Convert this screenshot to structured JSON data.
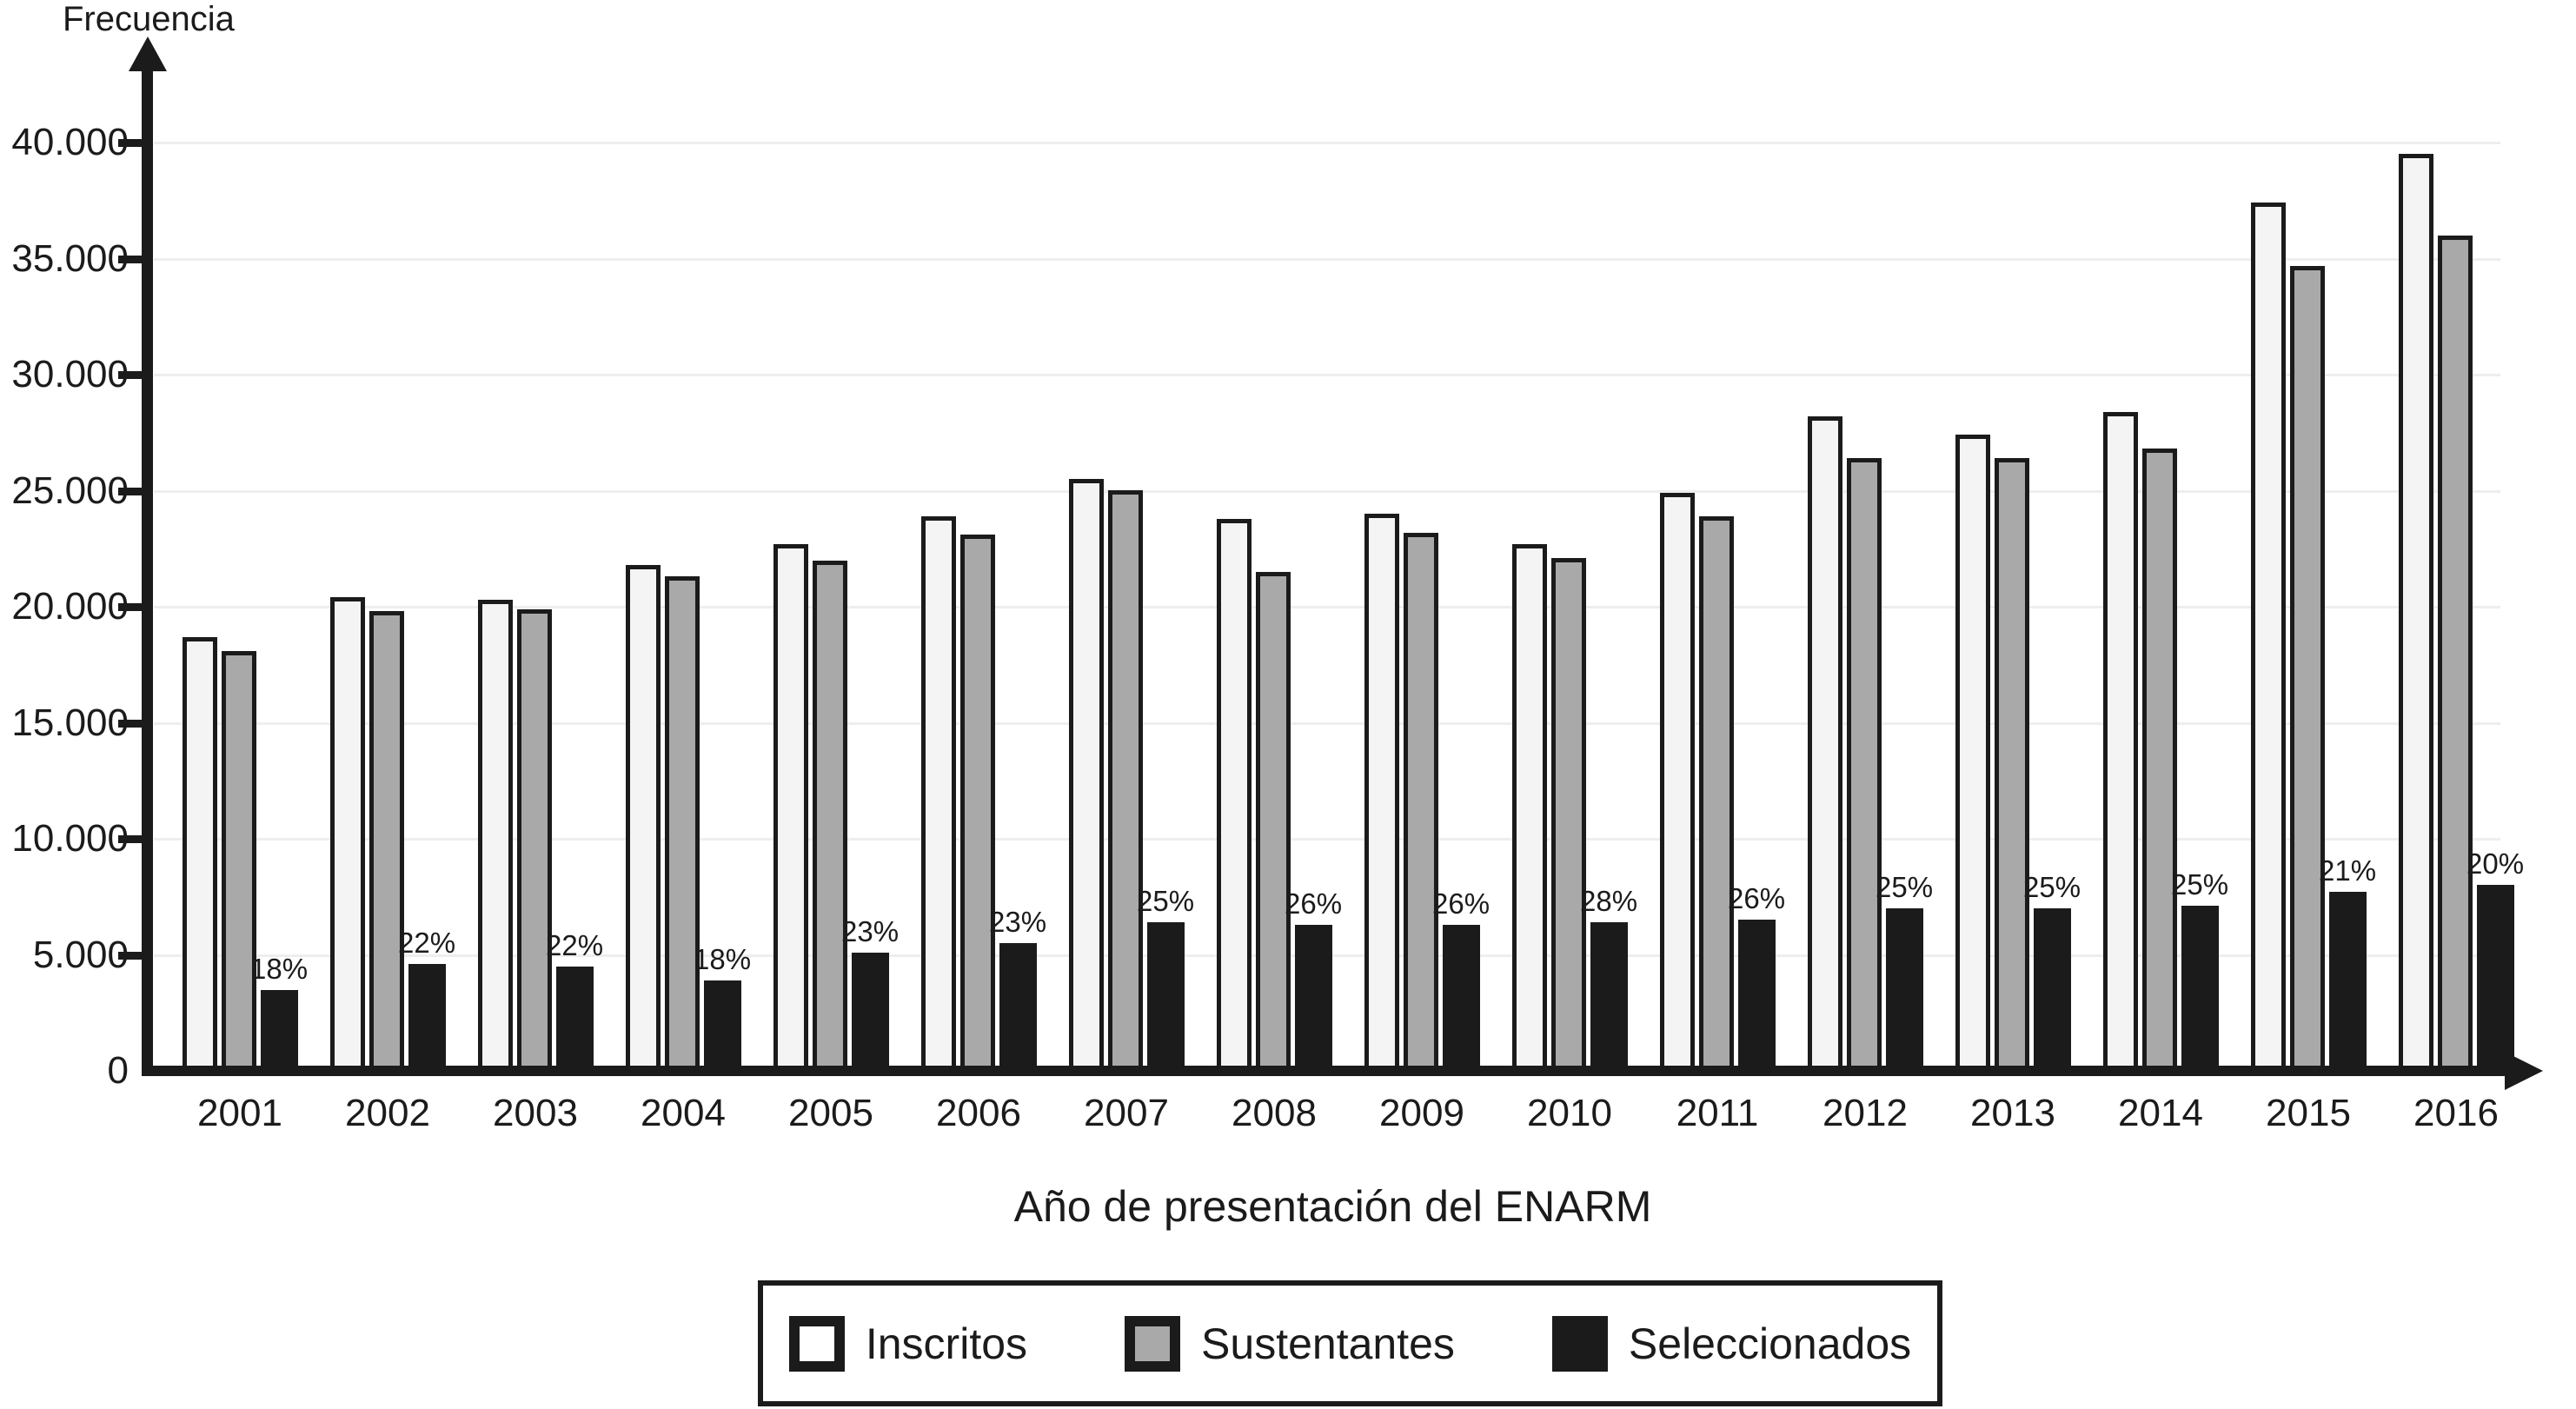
{
  "chart_data": {
    "type": "bar",
    "title": "",
    "ylabel": "Frecuencia",
    "xlabel": "Año de presentación del ENARM",
    "categories": [
      "2001",
      "2002",
      "2003",
      "2004",
      "2005",
      "2006",
      "2007",
      "2008",
      "2009",
      "2010",
      "2011",
      "2012",
      "2013",
      "2014",
      "2015",
      "2016"
    ],
    "series": [
      {
        "name": "Inscritos",
        "color": "#f4f4f4",
        "values": [
          18700,
          20400,
          20300,
          21800,
          22700,
          23900,
          25500,
          23800,
          24000,
          22700,
          24900,
          28200,
          27400,
          28400,
          37400,
          39500
        ]
      },
      {
        "name": "Sustentantes",
        "color": "#a9a9a9",
        "values": [
          18100,
          19800,
          19900,
          21300,
          22000,
          23100,
          25000,
          21500,
          23200,
          22100,
          23900,
          26400,
          26400,
          26800,
          34700,
          36000
        ]
      },
      {
        "name": "Seleccionados",
        "color": "#1b1b1b",
        "values": [
          3500,
          4600,
          4500,
          3900,
          5100,
          5500,
          6400,
          6300,
          6300,
          6400,
          6500,
          7000,
          7000,
          7100,
          7700,
          8000
        ]
      }
    ],
    "bar_labels_series": "Seleccionados",
    "bar_labels": [
      "18%",
      "22%",
      "22%",
      "18%",
      "23%",
      "23%",
      "25%",
      "26%",
      "26%",
      "28%",
      "26%",
      "25%",
      "25%",
      "25%",
      "21%",
      "20%"
    ],
    "ylim": [
      0,
      40000
    ],
    "yticks": [
      0,
      5000,
      10000,
      15000,
      20000,
      25000,
      30000,
      35000,
      40000
    ],
    "ytick_labels": [
      "0",
      "5.000",
      "10.000",
      "15.000",
      "20.000",
      "25.000",
      "30.000",
      "35.000",
      "40.000"
    ],
    "grid": true,
    "legend_position": "bottom"
  }
}
